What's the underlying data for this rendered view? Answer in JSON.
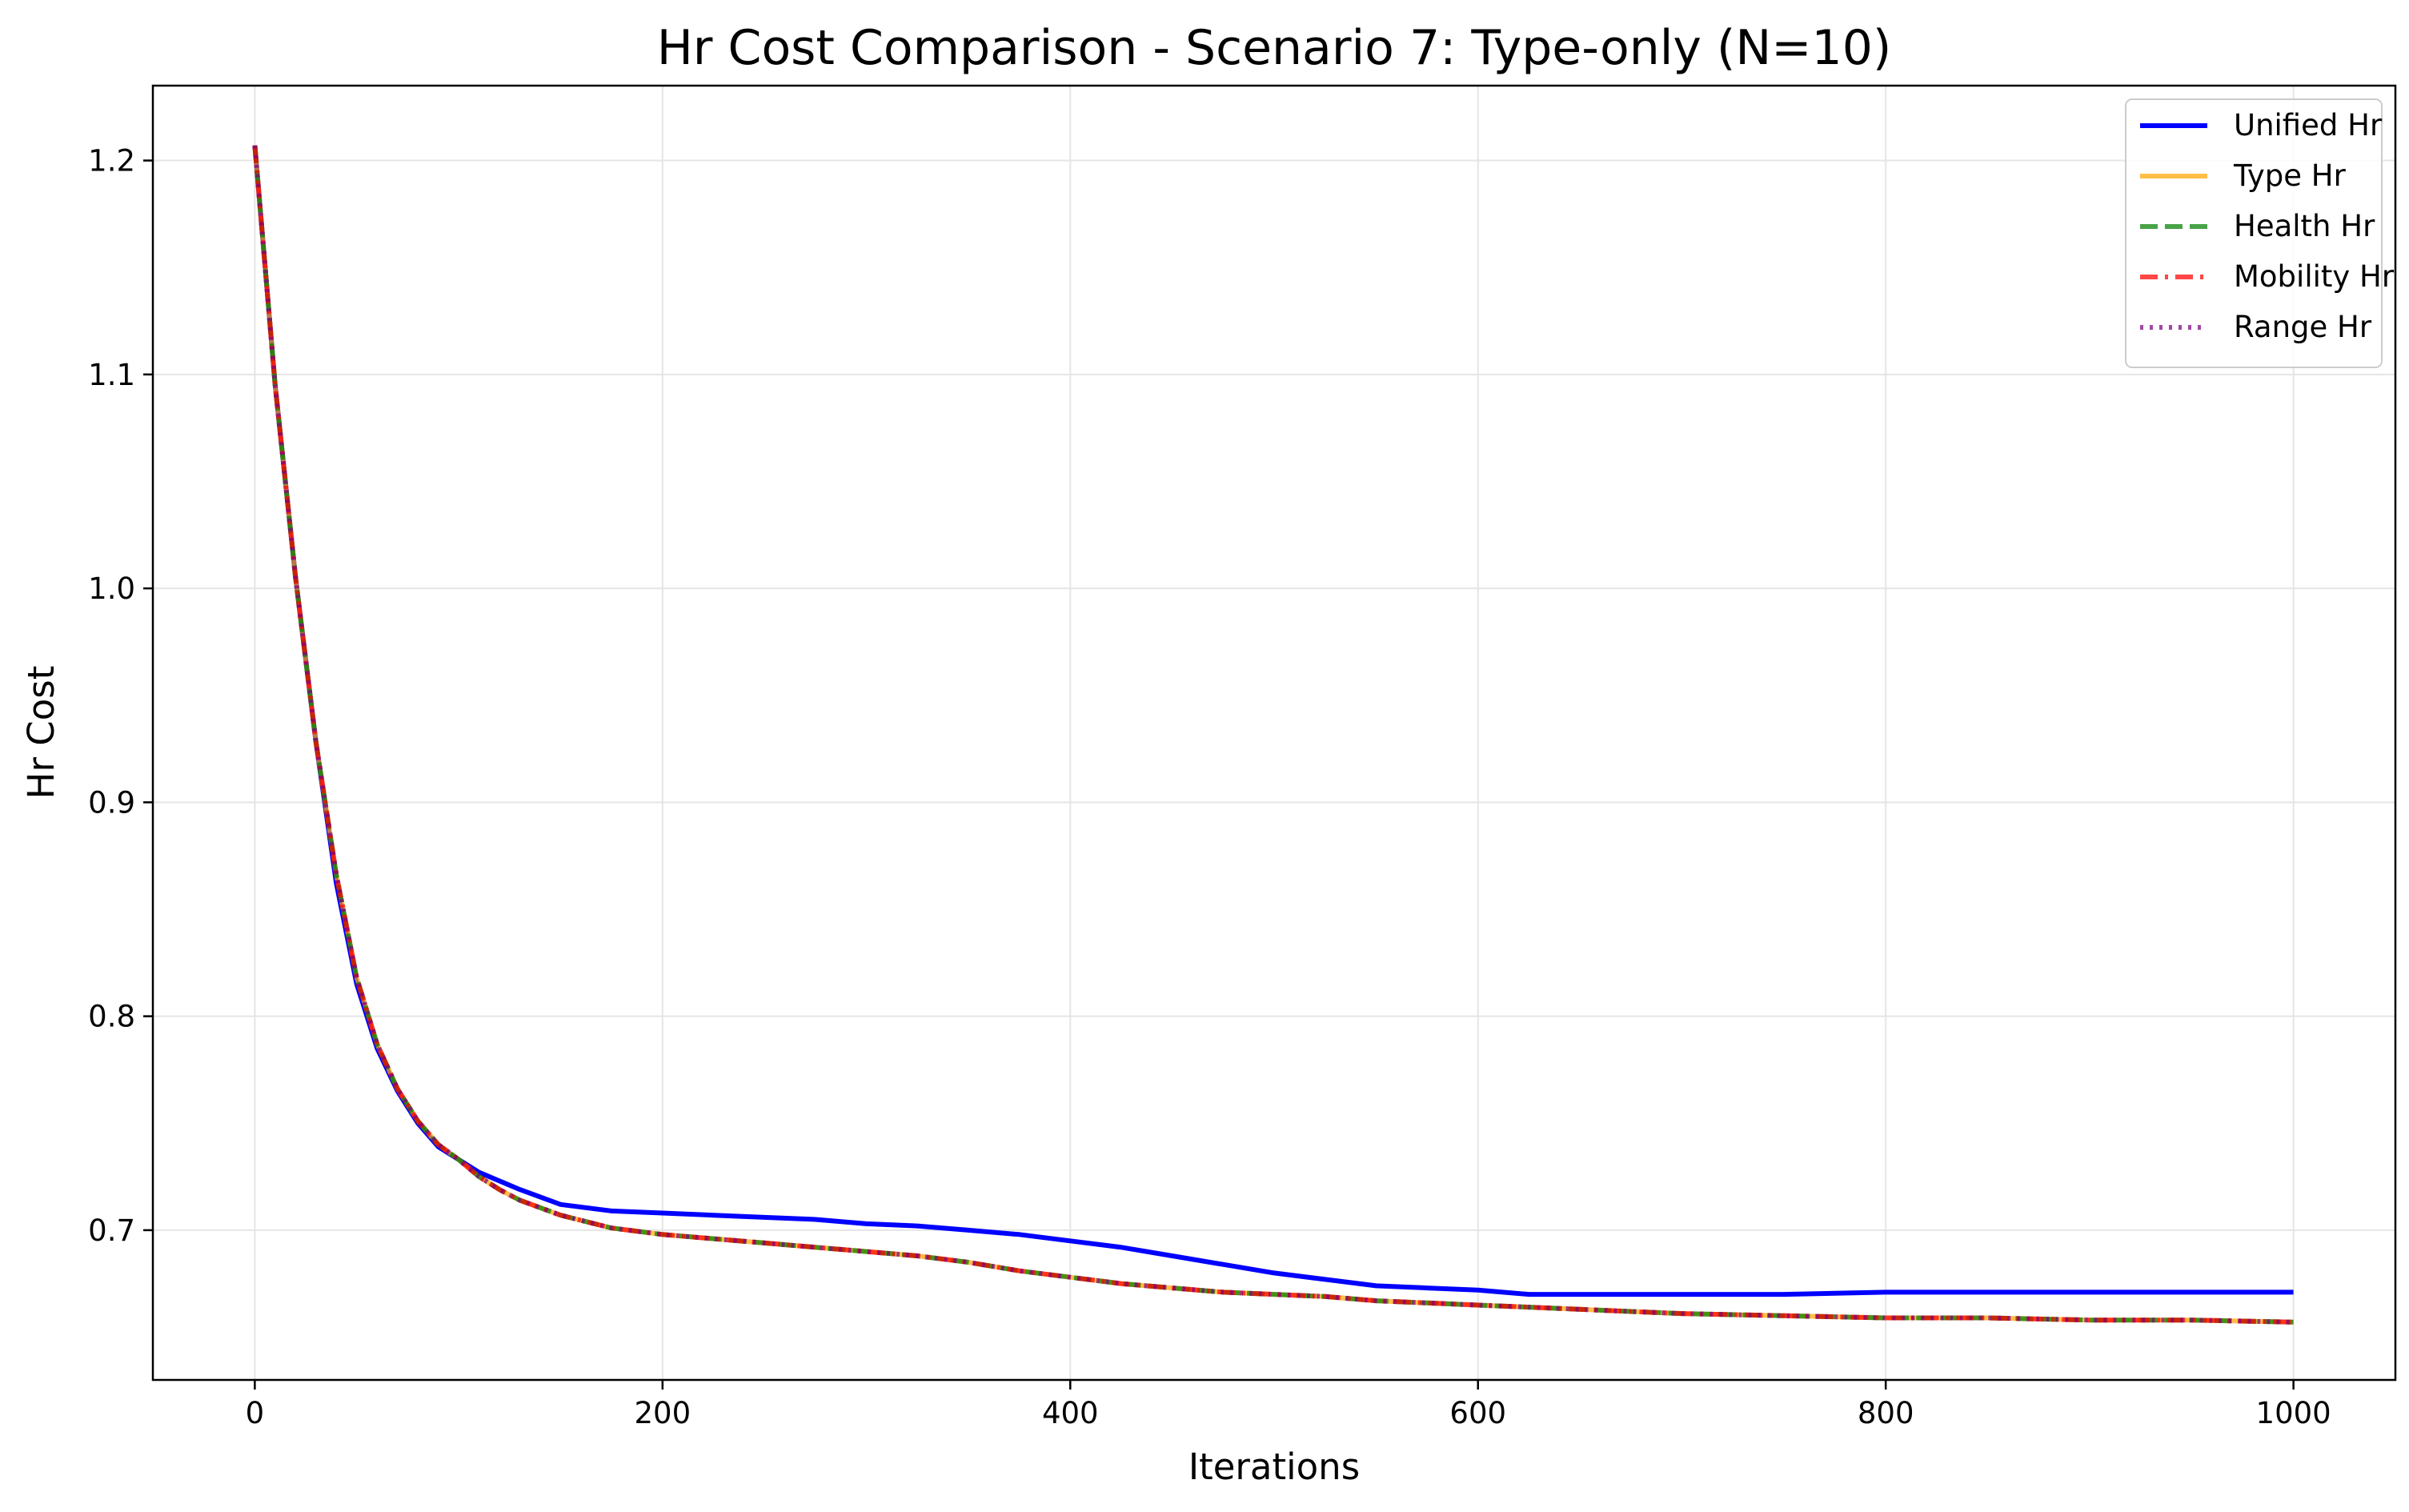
{
  "chart_data": {
    "type": "line",
    "title": "Hr Cost Comparison - Scenario 7: Type-only (N=10)",
    "xlabel": "Iterations",
    "ylabel": "Hr Cost",
    "xlim": [
      -50,
      1050
    ],
    "ylim": [
      0.63,
      1.235
    ],
    "xticks": [
      0,
      200,
      400,
      600,
      800,
      1000
    ],
    "xtick_labels": [
      "0",
      "200",
      "400",
      "600",
      "800",
      "1000"
    ],
    "yticks": [
      0.7,
      0.8,
      0.9,
      1.0,
      1.1,
      1.2
    ],
    "ytick_labels": [
      "0.7",
      "0.8",
      "0.9",
      "1.0",
      "1.1",
      "1.2"
    ],
    "grid": true,
    "legend_position": "top-right",
    "x": [
      0,
      10,
      20,
      30,
      40,
      50,
      60,
      70,
      80,
      90,
      100,
      110,
      120,
      130,
      150,
      175,
      200,
      225,
      250,
      275,
      300,
      325,
      350,
      375,
      400,
      425,
      450,
      475,
      500,
      525,
      550,
      575,
      600,
      625,
      650,
      675,
      700,
      750,
      800,
      850,
      900,
      950,
      1000
    ],
    "series": [
      {
        "name": "Unified Hr",
        "color": "#0000ff",
        "style": "solid",
        "values": [
          1.207,
          1.095,
          1.005,
          0.928,
          0.862,
          0.815,
          0.785,
          0.765,
          0.75,
          0.739,
          0.733,
          0.727,
          0.723,
          0.719,
          0.712,
          0.709,
          0.708,
          0.707,
          0.706,
          0.705,
          0.703,
          0.702,
          0.7,
          0.698,
          0.695,
          0.692,
          0.688,
          0.684,
          0.68,
          0.677,
          0.674,
          0.673,
          0.672,
          0.67,
          0.67,
          0.67,
          0.67,
          0.67,
          0.671,
          0.671,
          0.671,
          0.671,
          0.671
        ]
      },
      {
        "name": "Type Hr",
        "color": "#ffa500",
        "style": "solid",
        "values": [
          1.207,
          1.095,
          1.005,
          0.928,
          0.866,
          0.818,
          0.787,
          0.766,
          0.751,
          0.74,
          0.733,
          0.725,
          0.719,
          0.714,
          0.707,
          0.701,
          0.698,
          0.696,
          0.694,
          0.692,
          0.69,
          0.688,
          0.685,
          0.681,
          0.678,
          0.675,
          0.673,
          0.671,
          0.67,
          0.669,
          0.667,
          0.666,
          0.665,
          0.664,
          0.663,
          0.662,
          0.661,
          0.66,
          0.659,
          0.659,
          0.658,
          0.658,
          0.657
        ]
      },
      {
        "name": "Health Hr",
        "color": "#008000",
        "style": "dashed",
        "values": [
          1.207,
          1.095,
          1.005,
          0.928,
          0.866,
          0.818,
          0.787,
          0.766,
          0.751,
          0.74,
          0.733,
          0.725,
          0.719,
          0.714,
          0.707,
          0.701,
          0.698,
          0.696,
          0.694,
          0.692,
          0.69,
          0.688,
          0.685,
          0.681,
          0.678,
          0.675,
          0.673,
          0.671,
          0.67,
          0.669,
          0.667,
          0.666,
          0.665,
          0.664,
          0.663,
          0.662,
          0.661,
          0.66,
          0.659,
          0.659,
          0.658,
          0.658,
          0.657
        ]
      },
      {
        "name": "Mobility Hr",
        "color": "#ff0000",
        "style": "dashdot",
        "values": [
          1.207,
          1.095,
          1.005,
          0.928,
          0.866,
          0.818,
          0.787,
          0.766,
          0.751,
          0.74,
          0.733,
          0.725,
          0.719,
          0.714,
          0.707,
          0.701,
          0.698,
          0.696,
          0.694,
          0.692,
          0.69,
          0.688,
          0.685,
          0.681,
          0.678,
          0.675,
          0.673,
          0.671,
          0.67,
          0.669,
          0.667,
          0.666,
          0.665,
          0.664,
          0.663,
          0.662,
          0.661,
          0.66,
          0.659,
          0.659,
          0.658,
          0.658,
          0.657
        ]
      },
      {
        "name": "Range Hr",
        "color": "#800080",
        "style": "dotted",
        "values": [
          1.207,
          1.095,
          1.005,
          0.928,
          0.866,
          0.818,
          0.787,
          0.766,
          0.751,
          0.74,
          0.733,
          0.725,
          0.719,
          0.714,
          0.707,
          0.701,
          0.698,
          0.696,
          0.694,
          0.692,
          0.69,
          0.688,
          0.685,
          0.681,
          0.678,
          0.675,
          0.673,
          0.671,
          0.67,
          0.669,
          0.667,
          0.666,
          0.665,
          0.664,
          0.663,
          0.662,
          0.661,
          0.66,
          0.659,
          0.659,
          0.658,
          0.658,
          0.657
        ]
      }
    ]
  }
}
